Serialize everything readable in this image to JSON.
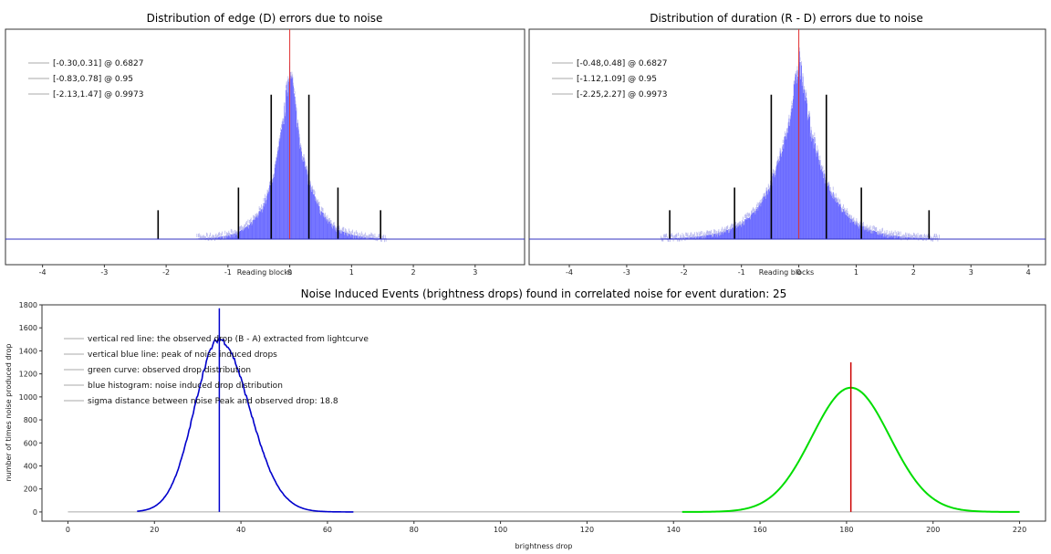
{
  "charts": [
    {
      "type": "bar",
      "title": "Distribution of edge (D) errors due to noise",
      "xlabel": "Reading blocks",
      "xlim": [
        -4.6,
        3.8
      ],
      "xticks": [
        -4,
        -3,
        -2,
        -1,
        0,
        1,
        2,
        3
      ],
      "legend_position": "top-left",
      "legend": [
        "[-0.30,0.31] @ 0.6827",
        "[-0.83,0.78] @ 0.95",
        "[-2.13,1.47] @ 0.9973"
      ],
      "center_line": 0,
      "histogram": {
        "center": 0,
        "sigma_left": 0.3,
        "sigma_right": 0.31,
        "color": "#6b6bff"
      },
      "markers": [
        {
          "x": -2.13,
          "height": 0.14
        },
        {
          "x": -0.83,
          "height": 0.25
        },
        {
          "x": -0.3,
          "height": 0.7
        },
        {
          "x": 0.31,
          "height": 0.7
        },
        {
          "x": 0.78,
          "height": 0.25
        },
        {
          "x": 1.47,
          "height": 0.14
        }
      ]
    },
    {
      "type": "bar",
      "title": "Distribution of duration (R - D) errors due to noise",
      "xlabel": "Reading blocks",
      "xlim": [
        -4.7,
        4.3
      ],
      "xticks": [
        -4,
        -3,
        -2,
        -1,
        0,
        1,
        2,
        3,
        4
      ],
      "legend_position": "top-left",
      "legend": [
        "[-0.48,0.48] @ 0.6827",
        "[-1.12,1.09] @ 0.95",
        "[-2.25,2.27] @ 0.9973"
      ],
      "center_line": 0,
      "histogram": {
        "center": 0,
        "sigma_left": 0.48,
        "sigma_right": 0.48,
        "color": "#6b6bff"
      },
      "markers": [
        {
          "x": -2.25,
          "height": 0.14
        },
        {
          "x": -1.12,
          "height": 0.25
        },
        {
          "x": -0.48,
          "height": 0.7
        },
        {
          "x": 0.48,
          "height": 0.7
        },
        {
          "x": 1.09,
          "height": 0.25
        },
        {
          "x": 2.27,
          "height": 0.14
        }
      ]
    },
    {
      "type": "line",
      "title": "Noise Induced Events (brightness drops) found in correlated noise for event duration: 25",
      "xlabel": "brightness drop",
      "ylabel": "number of times noise produced drop",
      "xlim": [
        -6,
        226
      ],
      "ylim": [
        -80,
        1800
      ],
      "xticks": [
        0,
        20,
        40,
        60,
        80,
        100,
        120,
        140,
        160,
        180,
        200,
        220
      ],
      "yticks": [
        0,
        200,
        400,
        600,
        800,
        1000,
        1200,
        1400,
        1600,
        1800
      ],
      "legend_position": "top-left",
      "legend": [
        "vertical red line: the observed drop (B - A) extracted from lightcurve",
        "vertical blue line: peak of noise induced drops",
        "green curve: observed drop distribution",
        "blue histogram: noise induced drop distribution",
        "sigma distance between noise Peak and observed drop: 18.8"
      ],
      "baseline_range": [
        0,
        220
      ],
      "noise_histogram": {
        "color": "#0000cc",
        "peak_x": 35,
        "peak_y": 1500,
        "sigma": 6.2,
        "x_range": [
          16,
          66
        ]
      },
      "noise_peak_line": {
        "x": 35,
        "y_top": 1770,
        "color": "#0000cc"
      },
      "observed_curve": {
        "color": "#00dd00",
        "center": 181,
        "amplitude": 1080,
        "sigma": 9,
        "x_range": [
          142,
          220
        ]
      },
      "observed_line": {
        "x": 181,
        "y_top": 1300,
        "color": "#cc0000"
      }
    }
  ]
}
